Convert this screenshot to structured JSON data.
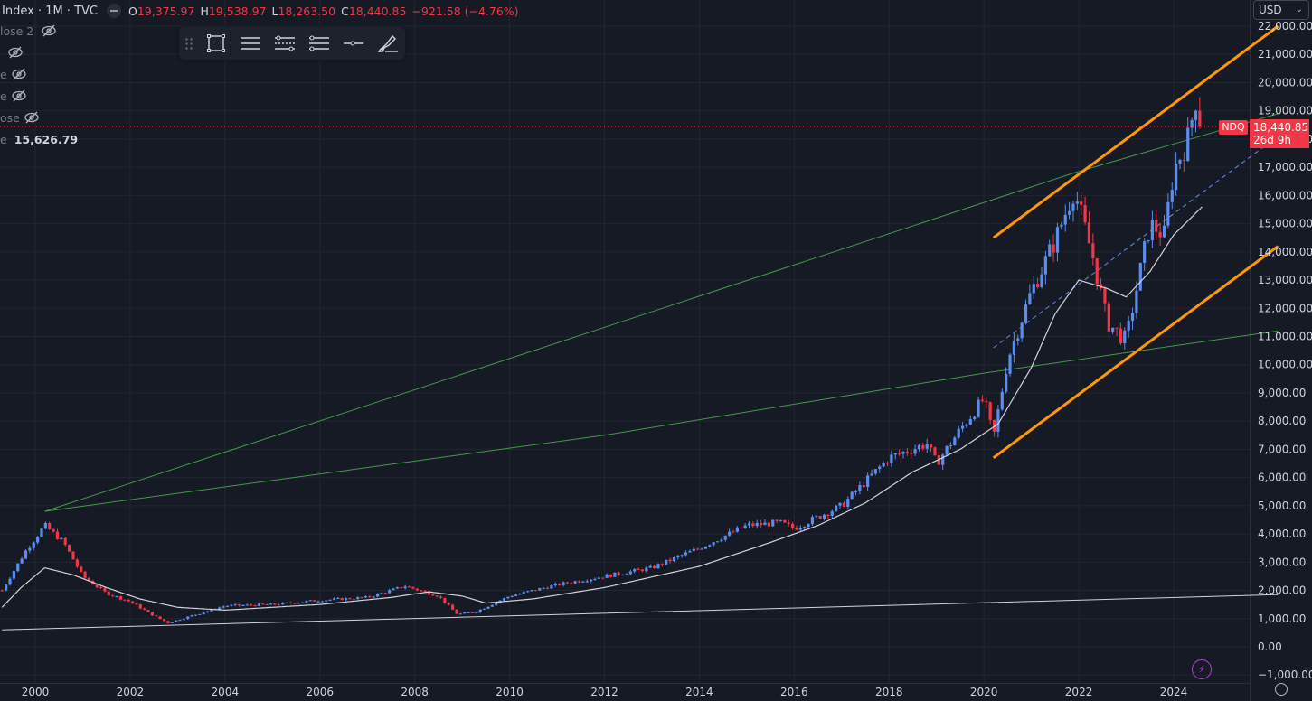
{
  "header": {
    "symbol_title": "Index · 1M · TVC",
    "ohlc": [
      {
        "key": "O",
        "value": "19,375.97"
      },
      {
        "key": "H",
        "value": "19,538.97"
      },
      {
        "key": "L",
        "value": "18,263.50"
      },
      {
        "key": "C",
        "value": "18,440.85"
      }
    ],
    "change": "−921.58 (−4.76%)"
  },
  "studies": [
    {
      "label": "lose 2",
      "value": null
    },
    {
      "label": "",
      "value": null
    },
    {
      "label": "e",
      "value": null
    },
    {
      "label": "e",
      "value": null
    },
    {
      "label": "ose",
      "value": null
    },
    {
      "label": "e",
      "value": "15,626.79"
    }
  ],
  "currency": "USD",
  "last_price": {
    "symbol": "NDQ",
    "price": "18,440.85",
    "countdown": "26d 9h",
    "value": 18440.85
  },
  "icons": {
    "toolbar": [
      "grip-icon",
      "rectangle-icon",
      "text-lines-icon",
      "line-dots-icon",
      "channel-icon",
      "horizontal-ray-icon",
      "brush-icon"
    ],
    "eye": "eye-off-icon",
    "bolt": "bolt-icon",
    "settings": "gear-icon"
  },
  "colors": {
    "up": "#5b8def",
    "down": "#f23645",
    "orange": "#ff9800",
    "green": "#4caf50",
    "ma": "#d1d4dc"
  },
  "chart_data": {
    "type": "candlestick",
    "x_ticks": [
      "2000",
      "2002",
      "2004",
      "2006",
      "2008",
      "2010",
      "2012",
      "2014",
      "2016",
      "2018",
      "2020",
      "2022",
      "2024"
    ],
    "y_ticks": [
      "−1,000.00",
      "0.00",
      "1,000.00",
      "2,000.00",
      "3,000.00",
      "4,000.00",
      "5,000.00",
      "6,000.00",
      "7,000.00",
      "8,000.00",
      "9,000.00",
      "10,000.00",
      "11,000.00",
      "12,000.00",
      "13,000.00",
      "14,000.00",
      "15,000.00",
      "16,000.00",
      "17,000.00",
      "18,000.00",
      "19,000.00",
      "20,000.00",
      "21,000.00",
      "22,000.00"
    ],
    "ylim": [
      -1000,
      22000
    ],
    "xlim": [
      1999.3,
      2026.2
    ],
    "price_anchors": [
      [
        1999.3,
        2000
      ],
      [
        1999.8,
        3400
      ],
      [
        2000.2,
        4300
      ],
      [
        2000.6,
        3700
      ],
      [
        2001.0,
        2500
      ],
      [
        2001.5,
        1900
      ],
      [
        2002.0,
        1600
      ],
      [
        2002.5,
        1100
      ],
      [
        2002.8,
        850
      ],
      [
        2003.2,
        1050
      ],
      [
        2004.0,
        1450
      ],
      [
        2005.0,
        1500
      ],
      [
        2006.0,
        1650
      ],
      [
        2007.0,
        1750
      ],
      [
        2007.8,
        2150
      ],
      [
        2008.5,
        1800
      ],
      [
        2008.9,
        1150
      ],
      [
        2009.3,
        1250
      ],
      [
        2010.0,
        1800
      ],
      [
        2011.0,
        2200
      ],
      [
        2012.0,
        2500
      ],
      [
        2013.0,
        2800
      ],
      [
        2014.0,
        3500
      ],
      [
        2015.0,
        4300
      ],
      [
        2015.7,
        4400
      ],
      [
        2016.0,
        4200
      ],
      [
        2017.0,
        5000
      ],
      [
        2018.0,
        6700
      ],
      [
        2018.8,
        7200
      ],
      [
        2019.0,
        6500
      ],
      [
        2019.5,
        7700
      ],
      [
        2020.0,
        8800
      ],
      [
        2020.2,
        7400
      ],
      [
        2020.5,
        10200
      ],
      [
        2021.0,
        12600
      ],
      [
        2021.5,
        14400
      ],
      [
        2021.9,
        16200
      ],
      [
        2022.3,
        13800
      ],
      [
        2022.6,
        11500
      ],
      [
        2022.9,
        11000
      ],
      [
        2023.0,
        10900
      ],
      [
        2023.5,
        15000
      ],
      [
        2023.8,
        14600
      ],
      [
        2024.0,
        16900
      ],
      [
        2024.3,
        18000
      ],
      [
        2024.5,
        19700
      ],
      [
        2024.6,
        18440
      ]
    ],
    "ma_anchors": [
      [
        1999.3,
        1400
      ],
      [
        1999.7,
        2100
      ],
      [
        2000.2,
        2800
      ],
      [
        2000.8,
        2550
      ],
      [
        2001.5,
        2100
      ],
      [
        2002.2,
        1700
      ],
      [
        2003.0,
        1400
      ],
      [
        2004.0,
        1300
      ],
      [
        2006.0,
        1500
      ],
      [
        2007.5,
        1750
      ],
      [
        2008.3,
        1950
      ],
      [
        2009.0,
        1800
      ],
      [
        2009.5,
        1550
      ],
      [
        2010.5,
        1700
      ],
      [
        2012.0,
        2100
      ],
      [
        2014.0,
        2850
      ],
      [
        2015.5,
        3700
      ],
      [
        2016.5,
        4300
      ],
      [
        2017.5,
        5100
      ],
      [
        2018.5,
        6200
      ],
      [
        2019.5,
        7000
      ],
      [
        2020.3,
        7900
      ],
      [
        2021.0,
        9900
      ],
      [
        2021.5,
        11800
      ],
      [
        2022.0,
        13000
      ],
      [
        2022.6,
        12700
      ],
      [
        2023.0,
        12400
      ],
      [
        2023.5,
        13300
      ],
      [
        2024.0,
        14600
      ],
      [
        2024.6,
        15600
      ]
    ],
    "trendlines": [
      {
        "name": "white-long-trendline",
        "color": "#d1d4dc",
        "points": [
          [
            1999.3,
            600
          ],
          [
            2026.2,
            1850
          ]
        ]
      },
      {
        "name": "green-upper-trendline",
        "color": "#4caf50",
        "points": [
          [
            2000.2,
            4800
          ],
          [
            2021.9,
            16800
          ],
          [
            2026.2,
            18900
          ]
        ]
      },
      {
        "name": "green-lower-trendline",
        "color": "#4caf50",
        "points": [
          [
            2000.2,
            4800
          ],
          [
            2012.0,
            7500
          ],
          [
            2020.0,
            9700
          ],
          [
            2026.2,
            11200
          ]
        ]
      },
      {
        "name": "orange-upper-channel",
        "color": "#ff9800",
        "points": [
          [
            2020.2,
            14500
          ],
          [
            2026.2,
            22000
          ]
        ]
      },
      {
        "name": "orange-lower-channel",
        "color": "#ff9800",
        "points": [
          [
            2020.2,
            6700
          ],
          [
            2026.2,
            14200
          ]
        ]
      },
      {
        "name": "blue-dashed-midline",
        "color": "#5b8def",
        "points": [
          [
            2020.2,
            10600
          ],
          [
            2026.2,
            18100
          ]
        ]
      }
    ]
  }
}
